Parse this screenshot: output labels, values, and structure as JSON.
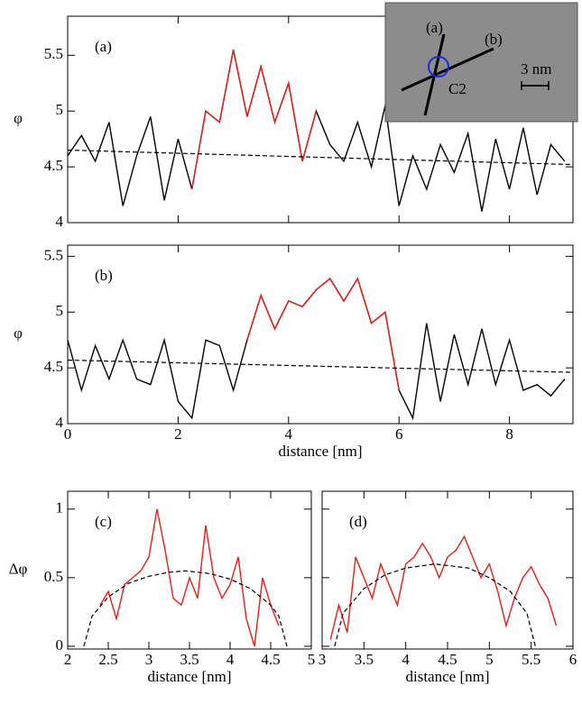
{
  "chart_data": [
    {
      "type": "line",
      "label": "(a)",
      "ylabel": "φ",
      "xlim": [
        0,
        9.15
      ],
      "ylim": [
        4,
        5.85
      ],
      "xticks": [
        0,
        2,
        4,
        6,
        8
      ],
      "show_xtick_labels": false,
      "yticks": [
        4,
        4.5,
        5,
        5.5
      ],
      "series": [
        {
          "color": "#000000",
          "dash": false,
          "x": [
            0,
            0.25,
            0.5,
            0.75,
            1,
            1.25,
            1.5,
            1.75,
            2,
            2.25,
            2.5,
            2.75,
            3,
            3.25,
            3.5,
            3.75,
            4,
            4.25,
            4.5,
            4.75,
            5,
            5.25,
            5.5,
            5.75,
            6,
            6.25,
            6.5,
            6.75,
            7,
            7.25,
            7.5,
            7.75,
            8,
            8.25,
            8.5,
            8.75,
            9
          ],
          "values": [
            4.6,
            4.78,
            4.55,
            4.9,
            4.15,
            4.6,
            4.95,
            4.2,
            4.75,
            4.3,
            5.0,
            4.9,
            5.55,
            4.95,
            5.4,
            4.9,
            5.25,
            4.55,
            5.0,
            4.7,
            4.55,
            4.9,
            4.5,
            5.05,
            4.15,
            4.6,
            4.3,
            4.7,
            4.45,
            4.8,
            4.1,
            4.75,
            4.3,
            4.85,
            4.25,
            4.7,
            4.55
          ]
        },
        {
          "color": "#e0201c",
          "dash": false,
          "x": [
            2.25,
            2.5,
            2.75,
            3,
            3.25,
            3.5,
            3.75,
            4,
            4.25,
            4.5
          ],
          "values": [
            4.3,
            5.0,
            4.9,
            5.55,
            4.95,
            5.4,
            4.9,
            5.25,
            4.55,
            5.0
          ]
        },
        {
          "color": "#000000",
          "dash": true,
          "x": [
            0,
            9.15
          ],
          "values": [
            4.65,
            4.52
          ]
        }
      ]
    },
    {
      "type": "line",
      "label": "(b)",
      "ylabel": "φ",
      "xlabel": "distance [nm]",
      "xlim": [
        0,
        9.15
      ],
      "ylim": [
        4,
        5.6
      ],
      "xticks": [
        0,
        2,
        4,
        6,
        8
      ],
      "show_xtick_labels": true,
      "yticks": [
        4,
        4.5,
        5,
        5.5
      ],
      "series": [
        {
          "color": "#000000",
          "dash": false,
          "x": [
            0,
            0.25,
            0.5,
            0.75,
            1,
            1.25,
            1.5,
            1.75,
            2,
            2.25,
            2.5,
            2.75,
            3,
            3.25,
            3.5,
            3.75,
            4,
            4.25,
            4.5,
            4.75,
            5,
            5.25,
            5.5,
            5.75,
            6,
            6.25,
            6.5,
            6.75,
            7,
            7.25,
            7.5,
            7.75,
            8,
            8.25,
            8.5,
            8.75,
            9
          ],
          "values": [
            4.75,
            4.3,
            4.7,
            4.4,
            4.75,
            4.4,
            4.35,
            4.75,
            4.2,
            4.05,
            4.75,
            4.7,
            4.3,
            4.75,
            5.15,
            4.85,
            5.1,
            5.05,
            5.2,
            5.3,
            5.1,
            5.3,
            4.9,
            5.0,
            4.3,
            4.05,
            4.9,
            4.2,
            4.8,
            4.35,
            4.85,
            4.35,
            4.75,
            4.3,
            4.35,
            4.25,
            4.4
          ]
        },
        {
          "color": "#e0201c",
          "dash": false,
          "x": [
            3.25,
            3.5,
            3.75,
            4,
            4.25,
            4.5,
            4.75,
            5,
            5.25,
            5.5,
            5.75,
            6
          ],
          "values": [
            4.75,
            5.15,
            4.85,
            5.1,
            5.05,
            5.2,
            5.3,
            5.1,
            5.3,
            4.9,
            5.0,
            4.3
          ]
        },
        {
          "color": "#000000",
          "dash": true,
          "x": [
            0,
            9.15
          ],
          "values": [
            4.57,
            4.46
          ]
        }
      ]
    },
    {
      "type": "line",
      "label": "(c)",
      "ylabel": "Δφ",
      "xlabel": "distance [nm]",
      "xlim": [
        2,
        5
      ],
      "ylim": [
        -0.02,
        1.13
      ],
      "xticks": [
        2,
        2.5,
        3,
        3.5,
        4,
        4.5,
        5
      ],
      "show_xtick_labels": true,
      "yticks": [
        0,
        0.5,
        1
      ],
      "series": [
        {
          "color": "#e0201c",
          "dash": false,
          "x": [
            2.4,
            2.5,
            2.6,
            2.7,
            2.8,
            2.9,
            3.0,
            3.1,
            3.2,
            3.3,
            3.4,
            3.5,
            3.6,
            3.7,
            3.8,
            3.9,
            4.0,
            4.1,
            4.2,
            4.3,
            4.4,
            4.5,
            4.6
          ],
          "values": [
            0.3,
            0.4,
            0.2,
            0.45,
            0.5,
            0.55,
            0.65,
            1.0,
            0.7,
            0.35,
            0.3,
            0.5,
            0.35,
            0.88,
            0.5,
            0.35,
            0.45,
            0.65,
            0.2,
            0.0,
            0.5,
            0.3,
            0.15
          ]
        },
        {
          "color": "#000000",
          "dash": true,
          "x": [
            2.2,
            2.3,
            2.5,
            2.75,
            3.0,
            3.25,
            3.45,
            3.75,
            4.0,
            4.25,
            4.5,
            4.6,
            4.7
          ],
          "values": [
            0,
            0.22,
            0.36,
            0.46,
            0.51,
            0.54,
            0.55,
            0.53,
            0.49,
            0.42,
            0.3,
            0.22,
            0
          ]
        }
      ]
    },
    {
      "type": "line",
      "label": "(d)",
      "xlabel": "distance [nm]",
      "xlim": [
        3,
        6
      ],
      "ylim": [
        -0.02,
        1.13
      ],
      "xticks": [
        3,
        3.5,
        4,
        4.5,
        5,
        5.5,
        6
      ],
      "show_xtick_labels": true,
      "yticks": [
        0,
        0.5,
        1
      ],
      "show_ytick_labels": false,
      "series": [
        {
          "color": "#e0201c",
          "dash": false,
          "x": [
            3.1,
            3.2,
            3.3,
            3.4,
            3.5,
            3.6,
            3.7,
            3.8,
            3.9,
            4.0,
            4.1,
            4.2,
            4.3,
            4.4,
            4.5,
            4.6,
            4.7,
            4.8,
            4.9,
            5.0,
            5.1,
            5.2,
            5.3,
            5.4,
            5.5,
            5.6,
            5.7,
            5.8
          ],
          "values": [
            0.05,
            0.3,
            0.1,
            0.65,
            0.5,
            0.35,
            0.6,
            0.45,
            0.3,
            0.6,
            0.65,
            0.75,
            0.65,
            0.5,
            0.65,
            0.7,
            0.8,
            0.65,
            0.5,
            0.6,
            0.4,
            0.15,
            0.35,
            0.5,
            0.58,
            0.45,
            0.35,
            0.15
          ]
        },
        {
          "color": "#000000",
          "dash": true,
          "x": [
            3.15,
            3.25,
            3.5,
            3.75,
            4.0,
            4.35,
            4.75,
            5.0,
            5.25,
            5.45,
            5.55
          ],
          "values": [
            0,
            0.24,
            0.42,
            0.52,
            0.57,
            0.6,
            0.57,
            0.5,
            0.4,
            0.24,
            0
          ]
        }
      ]
    }
  ],
  "inset": {
    "labels": [
      "(a)",
      "(b)",
      "C2",
      "3 nm"
    ]
  }
}
